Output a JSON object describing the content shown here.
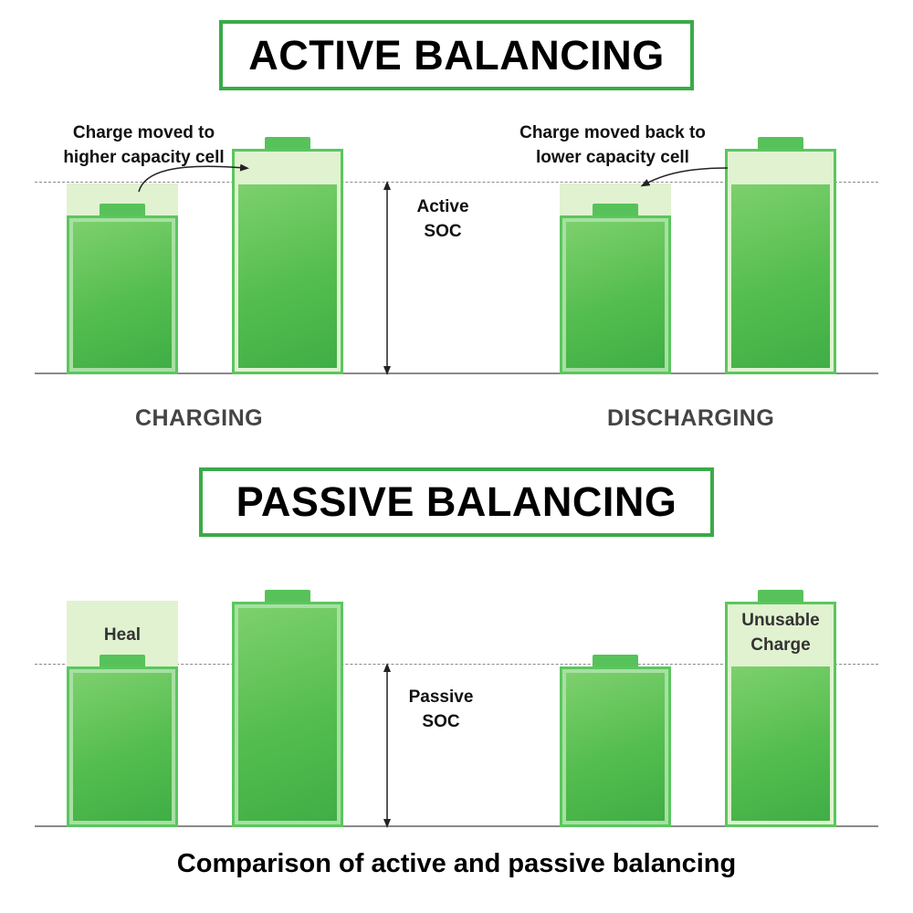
{
  "active": {
    "title": "ACTIVE BALANCING",
    "charging_label": "CHARGING",
    "discharging_label": "DISCHARGING",
    "note_charging": [
      "Charge moved to",
      "higher capacity cell"
    ],
    "note_discharging": [
      "Charge moved back to",
      "lower capacity cell"
    ],
    "soc_label": [
      "Active",
      "SOC"
    ]
  },
  "passive": {
    "title": "PASSIVE BALANCING",
    "heal_label": "Heal",
    "unusable_label": [
      "Unusable",
      "Charge"
    ],
    "soc_label": [
      "Passive",
      "SOC"
    ]
  },
  "caption": "Comparison of active and passive balancing",
  "colors": {
    "accent_border": "#3aaa48",
    "battery_fill": "#54bd4f",
    "ghost_fill": "#e0f2cf"
  }
}
